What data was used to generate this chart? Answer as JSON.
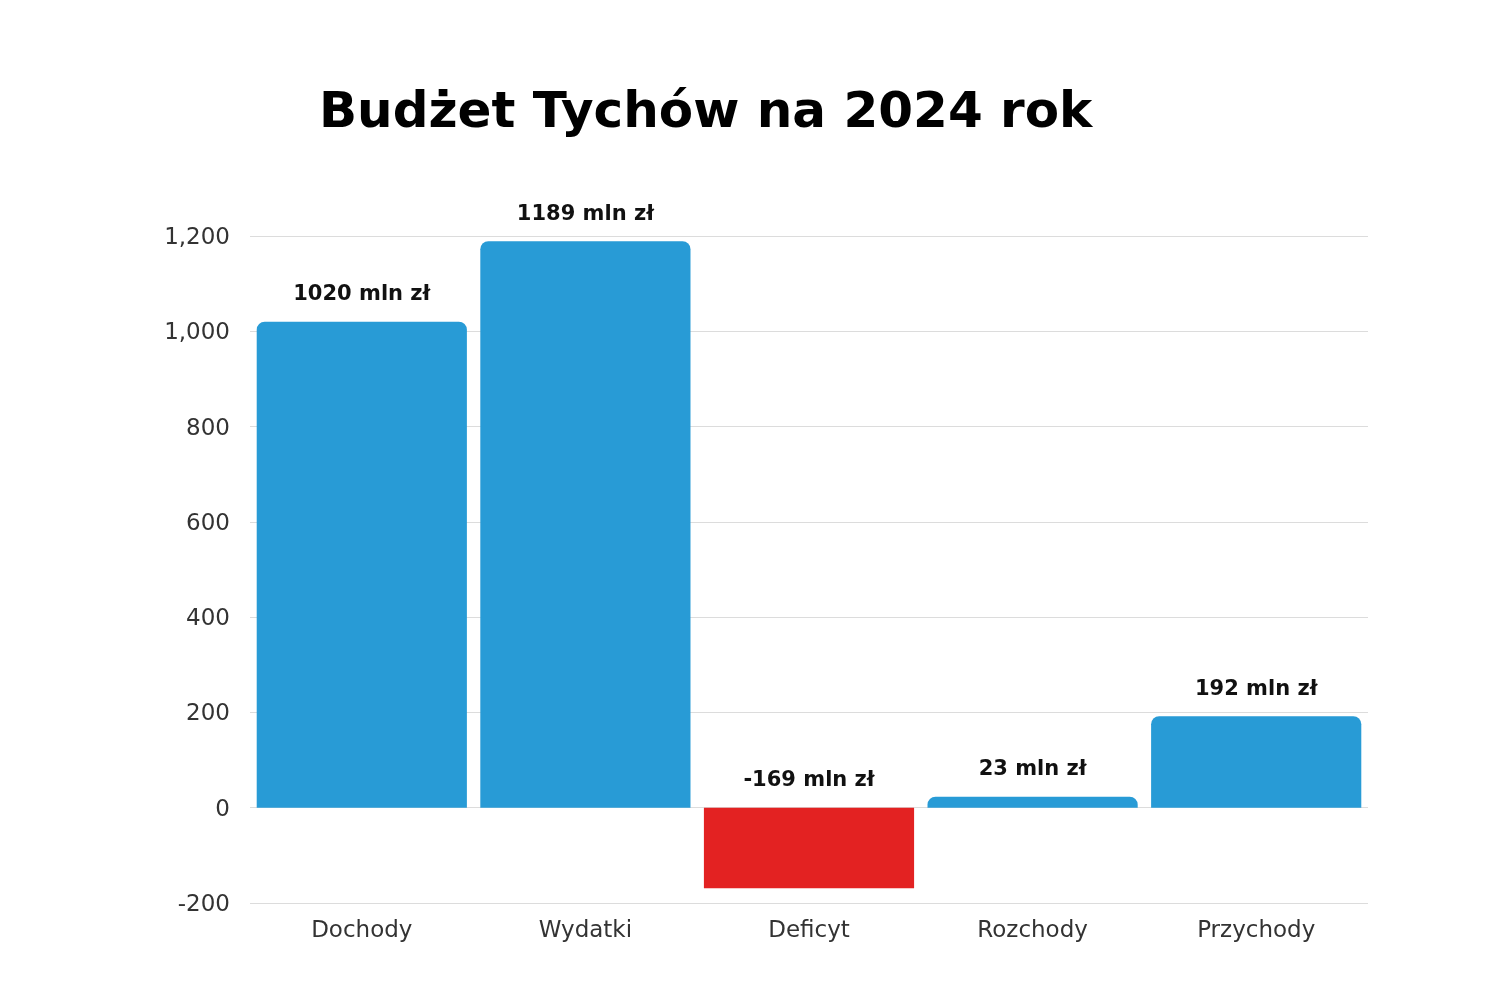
{
  "chart_data": {
    "type": "bar",
    "title": "Budżet Tychów na 2024 rok",
    "categories": [
      "Dochody",
      "Wydatki",
      "Deficyt",
      "Rozchody",
      "Przychody"
    ],
    "values": [
      1020,
      1189,
      -169,
      23,
      192
    ],
    "colors": [
      "#289bd6",
      "#289bd6",
      "#e32222",
      "#289bd6",
      "#289bd6"
    ],
    "value_labels": [
      "1020 mln zł",
      "1189 mln zł",
      "-169 mln zł",
      "23 mln zł",
      "192 mln zł"
    ],
    "ylim": [
      -200,
      1200
    ],
    "yticks": [
      -200,
      0,
      200,
      400,
      600,
      800,
      {
        "value": 1000,
        "label": "1,000"
      },
      {
        "value": 1200,
        "label": "1,200"
      }
    ],
    "grid": "y"
  }
}
